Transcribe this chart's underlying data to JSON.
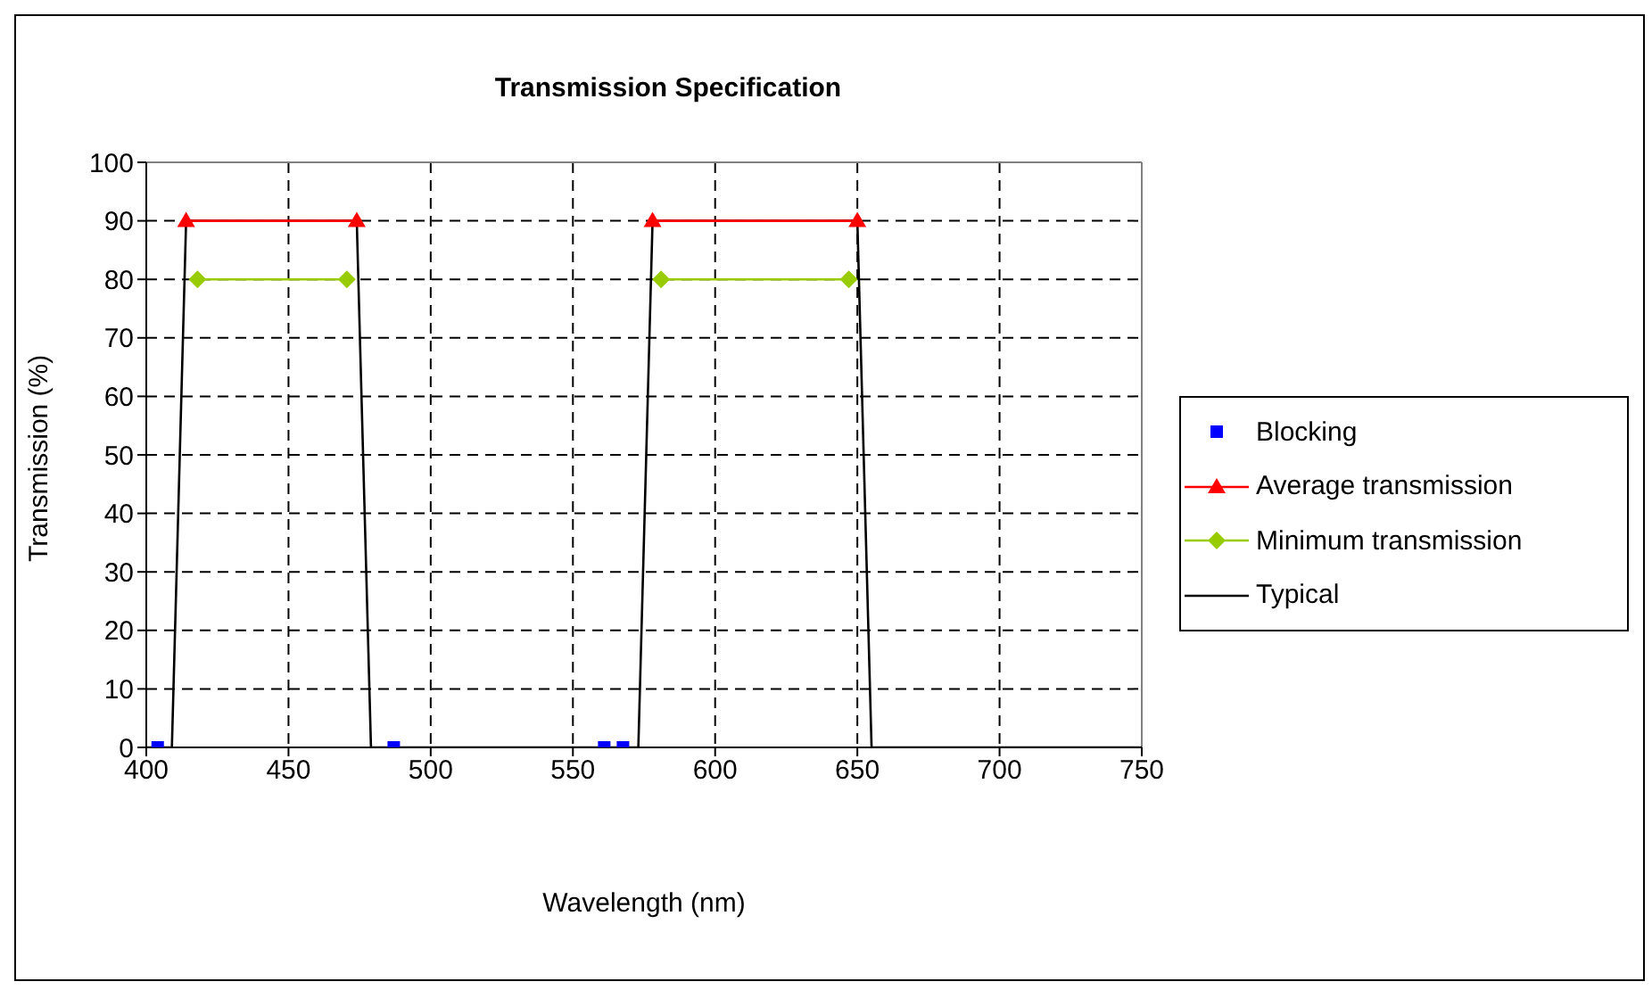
{
  "chart_data": {
    "type": "line",
    "title": "Transmission Specification",
    "xlabel": "Wavelength (nm)",
    "ylabel": "Transmission (%)",
    "xlim": [
      400,
      750
    ],
    "xticks": [
      400,
      450,
      500,
      550,
      600,
      650,
      700,
      750
    ],
    "ylim": [
      0,
      100
    ],
    "yticks": [
      0,
      10,
      20,
      30,
      40,
      50,
      60,
      70,
      80,
      90,
      100
    ],
    "grid": true,
    "legend": "right",
    "series": [
      {
        "name": "Blocking",
        "type": "scatter",
        "marker": "square",
        "color": "#0000ff",
        "x": [
          404,
          487,
          561,
          567.6
        ],
        "values": [
          0,
          0,
          0,
          0
        ]
      },
      {
        "name": "Average transmission",
        "marker": "triangle",
        "color": "#ff0000",
        "x": [
          414,
          474,
          526,
          578,
          650
        ],
        "values": [
          90,
          90,
          null,
          90,
          90
        ]
      },
      {
        "name": "Minimum transmission",
        "marker": "diamond",
        "color": "#99cc00",
        "x": [
          418,
          470.5,
          526,
          581,
          647
        ],
        "values": [
          80,
          80,
          null,
          80,
          80
        ]
      },
      {
        "name": "Typical",
        "marker": "none",
        "color": "#000000",
        "x": [
          400,
          409,
          414,
          474,
          479,
          573,
          578,
          650,
          655,
          750
        ],
        "values": [
          0,
          0,
          90,
          90,
          0,
          0,
          90,
          90,
          0,
          0
        ]
      }
    ]
  }
}
